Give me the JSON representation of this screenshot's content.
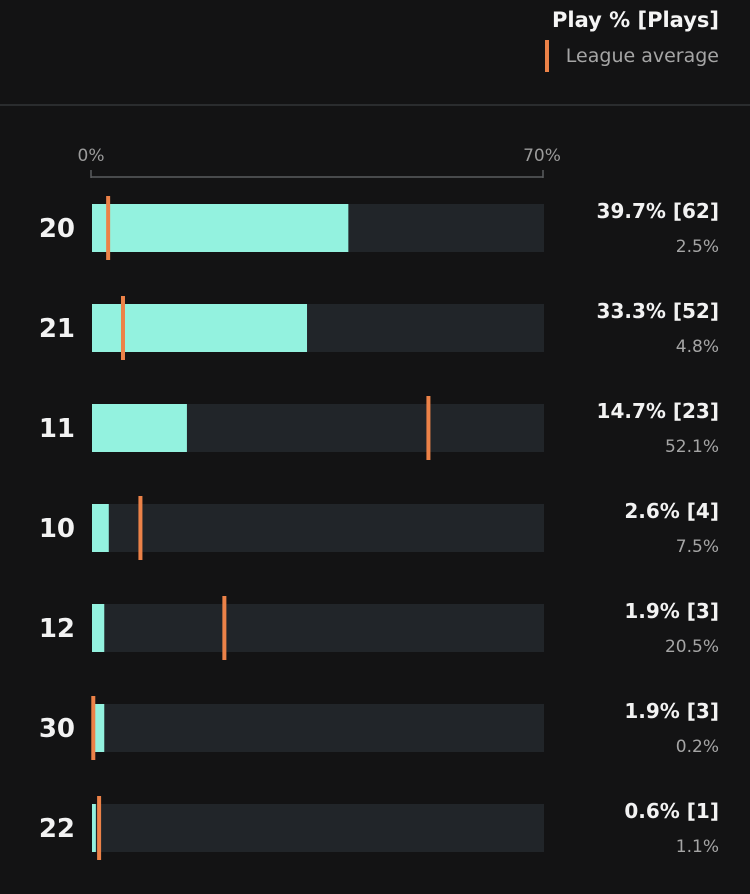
{
  "header": {
    "title": "Play % [Plays]"
  },
  "legend": {
    "label": "League average"
  },
  "colors": {
    "background": "#131314",
    "track": "#212529",
    "bar": "#93f2df",
    "average": "#ec8248",
    "axis": "#5a5c5e"
  },
  "chart_data": {
    "type": "bar",
    "orientation": "horizontal",
    "xlim": [
      0,
      70
    ],
    "x_ticks": [
      "0%",
      "70%"
    ],
    "categories": [
      "20",
      "21",
      "11",
      "10",
      "12",
      "30",
      "22"
    ],
    "series": [
      {
        "values": [
          39.7,
          33.3,
          14.7,
          2.6,
          1.9,
          1.9,
          0.6
        ],
        "labels": [
          "39.7% [62]",
          "33.3% [52]",
          "14.7% [23]",
          "2.6% [4]",
          "1.9% [3]",
          "1.9% [3]",
          "0.6% [1]"
        ]
      },
      {
        "name": "League average",
        "values": [
          2.5,
          4.8,
          52.1,
          7.5,
          20.5,
          0.2,
          1.1
        ],
        "labels": [
          "2.5%",
          "4.8%",
          "52.1%",
          "7.5%",
          "20.5%",
          "0.2%",
          "1.1%"
        ]
      }
    ],
    "legend_position": "top-right",
    "grid": false
  }
}
